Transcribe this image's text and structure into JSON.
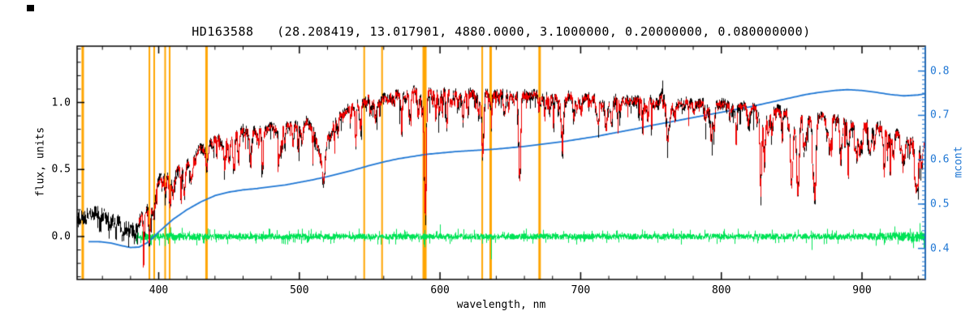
{
  "chart_data": {
    "type": "line",
    "title": "HD163588   (28.208419, 13.017901, 4880.0000, 3.1000000, 0.20000000, 0.080000000)",
    "xlabel": "wavelength, nm",
    "ylabel_left": "flux, units",
    "ylabel_right": "mcont",
    "x_range": [
      342,
      945
    ],
    "y_left_range": [
      -0.32,
      1.42
    ],
    "y_right_range": [
      0.33,
      0.856
    ],
    "x_major_ticks": [
      400,
      500,
      600,
      700,
      800,
      900
    ],
    "x_minor_step": 20,
    "y_left_major_ticks": [
      0.0,
      0.5,
      1.0
    ],
    "y_left_minor_step": 0.1,
    "y_right_major_ticks": [
      0.4,
      0.5,
      0.6,
      0.7,
      0.8
    ],
    "y_right_minor_step": 0.01,
    "grid": false,
    "legend": "none",
    "colors": {
      "spectrum": "#000000",
      "fit": "#ee0000",
      "residual": "#00e356",
      "continuum": "#1f77d4",
      "marker_lines": "#ffa500",
      "axis": "#000000",
      "right_axis": "#1f77d4",
      "background": "#ffffff"
    },
    "marker_lines_nm": [
      {
        "wl": 346.0,
        "w": 3
      },
      {
        "wl": 393.4,
        "w": 2
      },
      {
        "wl": 396.8,
        "w": 2
      },
      {
        "wl": 404.6,
        "w": 2
      },
      {
        "wl": 407.8,
        "w": 2
      },
      {
        "wl": 434.0,
        "w": 3
      },
      {
        "wl": 546.1,
        "w": 2
      },
      {
        "wl": 558.8,
        "w": 2
      },
      {
        "wl": 589.0,
        "w": 5
      },
      {
        "wl": 630.0,
        "w": 2
      },
      {
        "wl": 636.0,
        "w": 3
      },
      {
        "wl": 670.8,
        "w": 3
      }
    ],
    "series": [
      {
        "name": "observed spectrum",
        "color": "#000000",
        "x_start": 342,
        "x_end": 945,
        "points": [
          [
            342,
            0.14
          ],
          [
            348,
            0.15
          ],
          [
            354,
            0.18
          ],
          [
            360,
            0.16
          ],
          [
            366,
            0.12
          ],
          [
            372,
            0.1
          ],
          [
            377,
            0.06
          ],
          [
            381,
            0.05
          ],
          [
            385,
            0.1
          ],
          [
            389,
            0.18
          ],
          [
            392,
            0.24
          ],
          [
            395,
            0.3
          ],
          [
            398,
            0.36
          ],
          [
            401,
            0.44
          ],
          [
            404,
            0.46
          ],
          [
            407,
            0.43
          ],
          [
            410,
            0.46
          ],
          [
            413,
            0.51
          ],
          [
            417,
            0.5
          ],
          [
            421,
            0.55
          ],
          [
            425,
            0.6
          ],
          [
            429,
            0.66
          ],
          [
            433,
            0.64
          ],
          [
            436,
            0.72
          ],
          [
            440,
            0.76
          ],
          [
            444,
            0.72
          ],
          [
            448,
            0.76
          ],
          [
            452,
            0.74
          ],
          [
            456,
            0.77
          ],
          [
            460,
            0.8
          ],
          [
            465,
            0.76
          ],
          [
            470,
            0.8
          ],
          [
            475,
            0.78
          ],
          [
            480,
            0.82
          ],
          [
            485,
            0.78
          ],
          [
            490,
            0.82
          ],
          [
            495,
            0.84
          ],
          [
            500,
            0.8
          ],
          [
            505,
            0.86
          ],
          [
            510,
            0.78
          ],
          [
            514,
            0.62
          ],
          [
            517,
            0.6
          ],
          [
            520,
            0.74
          ],
          [
            524,
            0.86
          ],
          [
            528,
            0.9
          ],
          [
            533,
            0.94
          ],
          [
            538,
            0.97
          ],
          [
            543,
            1.0
          ],
          [
            548,
            1.03
          ],
          [
            553,
            1.05
          ],
          [
            558,
            1.02
          ],
          [
            563,
            1.05
          ],
          [
            568,
            1.06
          ],
          [
            573,
            1.07
          ],
          [
            578,
            1.08
          ],
          [
            583,
            1.09
          ],
          [
            588,
            1.06
          ],
          [
            593,
            1.08
          ],
          [
            598,
            1.07
          ],
          [
            603,
            1.08
          ],
          [
            608,
            1.07
          ],
          [
            613,
            1.08
          ],
          [
            618,
            1.06
          ],
          [
            623,
            1.07
          ],
          [
            628,
            1.06
          ],
          [
            633,
            1.07
          ],
          [
            638,
            1.05
          ],
          [
            643,
            1.07
          ],
          [
            648,
            1.06
          ],
          [
            653,
            1.05
          ],
          [
            658,
            1.06
          ],
          [
            663,
            1.05
          ],
          [
            668,
            1.06
          ],
          [
            673,
            1.04
          ],
          [
            678,
            1.05
          ],
          [
            683,
            1.04
          ],
          [
            688,
            1.04
          ],
          [
            693,
            1.05
          ],
          [
            698,
            1.03
          ],
          [
            703,
            1.04
          ],
          [
            708,
            1.03
          ],
          [
            713,
            1.03
          ],
          [
            718,
            1.02
          ],
          [
            723,
            1.03
          ],
          [
            728,
            1.02
          ],
          [
            733,
            1.02
          ],
          [
            738,
            1.01
          ],
          [
            743,
            1.02
          ],
          [
            748,
            1.02
          ],
          [
            753,
            1.03
          ],
          [
            758,
            1.04
          ],
          [
            763,
            1.01
          ],
          [
            768,
            1.0
          ],
          [
            773,
            1.0
          ],
          [
            778,
            1.0
          ],
          [
            783,
            0.99
          ],
          [
            788,
            1.0
          ],
          [
            793,
            0.99
          ],
          [
            798,
            1.0
          ],
          [
            803,
            0.98
          ],
          [
            808,
            0.98
          ],
          [
            813,
            0.97
          ],
          [
            818,
            0.97
          ],
          [
            823,
            0.96
          ],
          [
            828,
            0.96
          ],
          [
            833,
            0.95
          ],
          [
            838,
            0.95
          ],
          [
            843,
            0.94
          ],
          [
            848,
            0.9
          ],
          [
            853,
            0.9
          ],
          [
            858,
            0.92
          ],
          [
            863,
            0.88
          ],
          [
            868,
            0.9
          ],
          [
            873,
            0.9
          ],
          [
            878,
            0.89
          ],
          [
            883,
            0.88
          ],
          [
            888,
            0.87
          ],
          [
            893,
            0.86
          ],
          [
            898,
            0.85
          ],
          [
            903,
            0.84
          ],
          [
            908,
            0.83
          ],
          [
            913,
            0.82
          ],
          [
            918,
            0.8
          ],
          [
            923,
            0.78
          ],
          [
            928,
            0.76
          ],
          [
            933,
            0.74
          ],
          [
            938,
            0.72
          ],
          [
            943,
            0.7
          ],
          [
            945,
            0.69
          ]
        ]
      },
      {
        "name": "fitted spectrum",
        "color": "#ee0000",
        "x_start": 386,
        "x_end": 945,
        "points_ref": "observed spectrum"
      },
      {
        "name": "residual (obs - fit)",
        "color": "#00e356",
        "x_start": 384,
        "x_end": 945,
        "baseline": 0.0
      },
      {
        "name": "mcont continuum",
        "color": "#1f77d4",
        "axis": "right",
        "points": [
          [
            350,
            0.415
          ],
          [
            358,
            0.415
          ],
          [
            366,
            0.412
          ],
          [
            374,
            0.406
          ],
          [
            380,
            0.402
          ],
          [
            386,
            0.403
          ],
          [
            392,
            0.413
          ],
          [
            400,
            0.437
          ],
          [
            410,
            0.465
          ],
          [
            420,
            0.487
          ],
          [
            430,
            0.505
          ],
          [
            440,
            0.519
          ],
          [
            450,
            0.527
          ],
          [
            460,
            0.532
          ],
          [
            470,
            0.535
          ],
          [
            480,
            0.539
          ],
          [
            490,
            0.543
          ],
          [
            500,
            0.549
          ],
          [
            510,
            0.555
          ],
          [
            520,
            0.562
          ],
          [
            530,
            0.57
          ],
          [
            540,
            0.578
          ],
          [
            550,
            0.587
          ],
          [
            560,
            0.595
          ],
          [
            570,
            0.602
          ],
          [
            580,
            0.607
          ],
          [
            590,
            0.612
          ],
          [
            600,
            0.615
          ],
          [
            610,
            0.618
          ],
          [
            620,
            0.62
          ],
          [
            630,
            0.622
          ],
          [
            640,
            0.624
          ],
          [
            650,
            0.627
          ],
          [
            660,
            0.63
          ],
          [
            670,
            0.634
          ],
          [
            680,
            0.638
          ],
          [
            690,
            0.642
          ],
          [
            700,
            0.647
          ],
          [
            710,
            0.652
          ],
          [
            720,
            0.658
          ],
          [
            730,
            0.664
          ],
          [
            740,
            0.67
          ],
          [
            750,
            0.677
          ],
          [
            760,
            0.683
          ],
          [
            770,
            0.689
          ],
          [
            780,
            0.695
          ],
          [
            790,
            0.701
          ],
          [
            800,
            0.707
          ],
          [
            810,
            0.713
          ],
          [
            820,
            0.719
          ],
          [
            830,
            0.726
          ],
          [
            840,
            0.733
          ],
          [
            850,
            0.74
          ],
          [
            860,
            0.747
          ],
          [
            870,
            0.752
          ],
          [
            880,
            0.756
          ],
          [
            890,
            0.758
          ],
          [
            900,
            0.756
          ],
          [
            910,
            0.752
          ],
          [
            920,
            0.747
          ],
          [
            930,
            0.744
          ],
          [
            940,
            0.746
          ],
          [
            945,
            0.749
          ]
        ]
      }
    ],
    "absorption_lines": [
      [
        358,
        0.1,
        0.8
      ],
      [
        365,
        0.08,
        0.8
      ],
      [
        374,
        0.1,
        0.8
      ],
      [
        383,
        0.08,
        0.8
      ],
      [
        393.4,
        0.16,
        1.2
      ],
      [
        396.8,
        0.14,
        1.2
      ],
      [
        404.6,
        0.1,
        0.8
      ],
      [
        410.2,
        0.12,
        0.9
      ],
      [
        422.7,
        0.14,
        0.9
      ],
      [
        434.0,
        0.16,
        1.0
      ],
      [
        438.3,
        0.1,
        0.8
      ],
      [
        445.5,
        0.08,
        0.7
      ],
      [
        486.1,
        0.16,
        0.9
      ],
      [
        495,
        0.08,
        0.7
      ],
      [
        517.0,
        0.2,
        1.5
      ],
      [
        527.0,
        0.12,
        0.9
      ],
      [
        540,
        0.08,
        0.6
      ],
      [
        552,
        0.08,
        0.6
      ],
      [
        589.0,
        0.62,
        1.0
      ],
      [
        589.6,
        0.4,
        0.7
      ],
      [
        610,
        0.08,
        0.6
      ],
      [
        616.2,
        0.1,
        0.7
      ],
      [
        627,
        0.1,
        0.6
      ],
      [
        630.0,
        0.45,
        0.8
      ],
      [
        645,
        0.08,
        0.6
      ],
      [
        656.3,
        0.55,
        0.9
      ],
      [
        670,
        0.1,
        0.6
      ],
      [
        686.7,
        0.2,
        1.4
      ],
      [
        700,
        0.08,
        0.7
      ],
      [
        718.0,
        0.14,
        1.8
      ],
      [
        728,
        0.08,
        0.9
      ],
      [
        762.0,
        0.22,
        1.8
      ],
      [
        780,
        0.08,
        0.8
      ],
      [
        794,
        0.1,
        0.8
      ],
      [
        810,
        0.08,
        0.8
      ],
      [
        819.0,
        0.14,
        1.0
      ],
      [
        827,
        0.1,
        0.8
      ],
      [
        843,
        0.12,
        0.8
      ],
      [
        849.8,
        0.48,
        1.3
      ],
      [
        854.2,
        0.58,
        1.3
      ],
      [
        860,
        0.2,
        0.9
      ],
      [
        866.2,
        0.52,
        1.3
      ],
      [
        875,
        0.15,
        0.9
      ],
      [
        884,
        0.12,
        0.9
      ],
      [
        890,
        0.18,
        0.9
      ],
      [
        898,
        0.25,
        1.0
      ],
      [
        905,
        0.18,
        0.9
      ],
      [
        915,
        0.15,
        0.9
      ],
      [
        922,
        0.18,
        1.1
      ],
      [
        930,
        0.15,
        1.0
      ],
      [
        938,
        0.25,
        1.2
      ],
      [
        942,
        0.2,
        1.0
      ]
    ],
    "emission_spike": {
      "wl": 758,
      "height": 0.13
    },
    "residual_spikes": [
      [
        636,
        -0.17
      ],
      [
        600,
        0.09
      ],
      [
        589,
        -0.08
      ],
      [
        864,
        -0.1
      ],
      [
        941,
        0.1
      ]
    ],
    "noise": {
      "black_amp": 0.045,
      "red_amp": 0.03,
      "green_amp": 0.023,
      "seed": 7
    }
  }
}
